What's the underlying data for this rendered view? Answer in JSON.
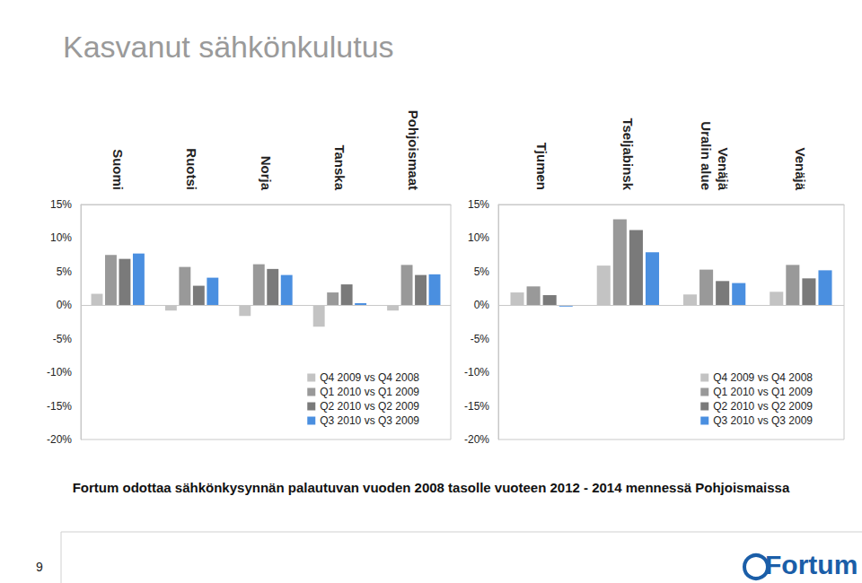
{
  "title": "Kasvanut sähkönkulutus",
  "footnote": "Fortum odottaa sähkönkysynnän palautuvan vuoden 2008 tasolle vuoteen 2012 - 2014 mennessä Pohjoismaissa",
  "page_number": "9",
  "logo": "Fortum",
  "chart_data": [
    {
      "type": "bar",
      "categories": [
        "Suomi",
        "Ruotsi",
        "Norja",
        "Tanska",
        "Pohjoismaat"
      ],
      "series": [
        {
          "name": "Q4 2009 vs Q4 2008",
          "color": "#c3c3c3",
          "values": [
            1.7,
            -0.8,
            -1.6,
            -3.2,
            -0.8
          ]
        },
        {
          "name": "Q1 2010 vs Q1 2009",
          "color": "#999999",
          "values": [
            7.5,
            5.7,
            6.1,
            1.9,
            6.0
          ]
        },
        {
          "name": "Q2 2010 vs Q2 2009",
          "color": "#7a7a7a",
          "values": [
            6.9,
            2.9,
            5.4,
            3.1,
            4.5
          ]
        },
        {
          "name": "Q3 2010 vs Q3 2009",
          "color": "#4a8fe0",
          "values": [
            7.7,
            4.1,
            4.5,
            0.3,
            4.6
          ]
        }
      ],
      "ylim": [
        -20,
        15
      ],
      "yticks": [
        {
          "value": -20,
          "label": "-20%"
        },
        {
          "value": -15,
          "label": "-15%"
        },
        {
          "value": -10,
          "label": "-10%"
        },
        {
          "value": -5,
          "label": "-5%"
        },
        {
          "value": 0,
          "label": "0%"
        },
        {
          "value": 5,
          "label": "5%"
        },
        {
          "value": 10,
          "label": "10%"
        },
        {
          "value": 15,
          "label": "15%"
        }
      ],
      "grid": false,
      "legend": "lower right"
    },
    {
      "type": "bar",
      "categories": [
        "Tjumen",
        "Tseljabinsk",
        "Venäjä\nUralin alue",
        "Venäjä"
      ],
      "series": [
        {
          "name": "Q4 2009 vs Q4 2008",
          "color": "#c3c3c3",
          "values": [
            1.9,
            5.9,
            1.6,
            2.0
          ]
        },
        {
          "name": "Q1 2010 vs Q1 2009",
          "color": "#999999",
          "values": [
            2.8,
            12.8,
            5.3,
            6.0
          ]
        },
        {
          "name": "Q2 2010 vs Q2 2009",
          "color": "#7a7a7a",
          "values": [
            1.5,
            11.2,
            3.6,
            4.0
          ]
        },
        {
          "name": "Q3 2010 vs Q3 2009",
          "color": "#4a8fe0",
          "values": [
            -0.2,
            7.9,
            3.3,
            5.2
          ]
        }
      ],
      "ylim": [
        -20,
        15
      ],
      "yticks": [
        {
          "value": -20,
          "label": "-20%"
        },
        {
          "value": -15,
          "label": "-15%"
        },
        {
          "value": -10,
          "label": "-10%"
        },
        {
          "value": -5,
          "label": "-5%"
        },
        {
          "value": 0,
          "label": "0%"
        },
        {
          "value": 5,
          "label": "5%"
        },
        {
          "value": 10,
          "label": "10%"
        },
        {
          "value": 15,
          "label": "15%"
        }
      ],
      "grid": false,
      "legend": "lower right"
    }
  ]
}
